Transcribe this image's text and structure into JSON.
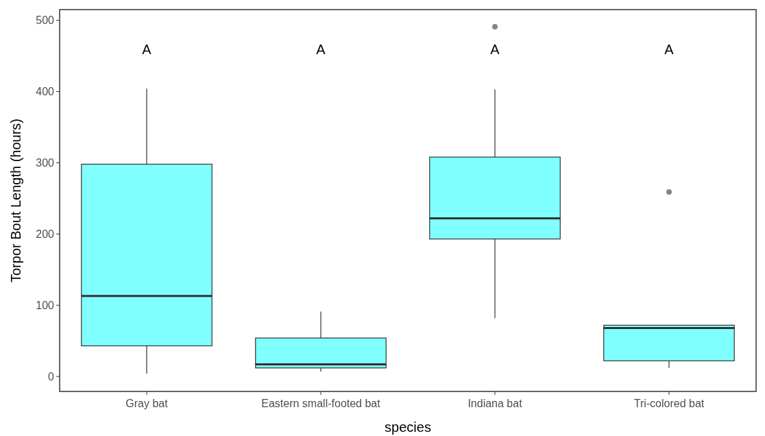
{
  "chart_data": {
    "type": "box",
    "xlabel": "species",
    "ylabel": "Torpor Bout Length (hours)",
    "categories": [
      "Gray bat",
      "Eastern small-footed bat",
      "Indiana bat",
      "Tri-colored bat"
    ],
    "ylim": [
      -21,
      515
    ],
    "yticks": [
      0,
      100,
      200,
      300,
      400,
      500
    ],
    "grid": false,
    "series": [
      {
        "color": "#80ffff",
        "boxes": [
          {
            "low": 4,
            "q1": 43,
            "median": 113,
            "q3": 298,
            "high": 404
          },
          {
            "low": 7,
            "q1": 12,
            "median": 17,
            "q3": 54,
            "high": 91
          },
          {
            "low": 82,
            "q1": 193,
            "median": 222,
            "q3": 308,
            "high": 403,
            "outliers": [
              491
            ]
          },
          {
            "low": 12,
            "q1": 22,
            "median": 68,
            "q3": 72,
            "high": 72,
            "outliers": [
              259
            ]
          }
        ]
      }
    ],
    "annotations": [
      "A",
      "A",
      "A",
      "A"
    ]
  }
}
